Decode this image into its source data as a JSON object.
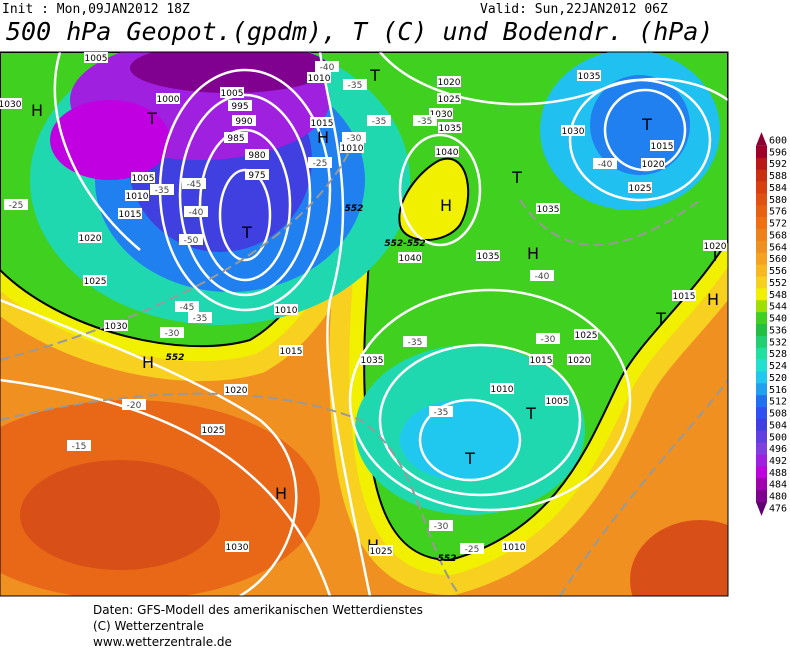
{
  "header": {
    "init": "Init : Mon,09JAN2012 18Z",
    "valid": "Valid: Sun,22JAN2012 06Z",
    "title": "500 hPa Geopot.(gpdm), T (C) und Bodendr. (hPa)"
  },
  "map": {
    "centers": [
      "H",
      "T",
      "H",
      "T",
      "H",
      "T",
      "H",
      "T",
      "H",
      "T",
      "H",
      "T",
      "T",
      "T",
      "H",
      "H",
      "T"
    ],
    "isobar_labels": [
      "1000",
      "1005",
      "995",
      "990",
      "985",
      "980",
      "975",
      "1010",
      "1015",
      "1010",
      "1020",
      "1025",
      "1030",
      "1035",
      "1040",
      "1035",
      "1030",
      "1015",
      "1020",
      "1025",
      "1035",
      "1040",
      "1035",
      "1020",
      "1015",
      "1030",
      "1025",
      "1020",
      "1015",
      "1010",
      "1005",
      "1010",
      "1015",
      "1020",
      "1025",
      "1030",
      "1035",
      "1025",
      "1020",
      "1015",
      "1010",
      "1005",
      "1010",
      "1025",
      "1030",
      "1005"
    ],
    "temperature_labels": [
      "-40",
      "-35",
      "-30",
      "-25",
      "-45",
      "-40",
      "-35",
      "-50",
      "-45",
      "-35",
      "-30",
      "-20",
      "-15",
      "-35",
      "-30",
      "-35",
      "-40",
      "-40",
      "-30",
      "-25",
      "-25",
      "-35",
      "-35"
    ],
    "height_labels": [
      "552",
      "552",
      "552",
      "552-552"
    ]
  },
  "colorbar": {
    "ticks": [
      "600",
      "596",
      "592",
      "588",
      "584",
      "580",
      "576",
      "572",
      "568",
      "564",
      "560",
      "556",
      "552",
      "548",
      "544",
      "540",
      "536",
      "532",
      "528",
      "524",
      "520",
      "516",
      "512",
      "508",
      "504",
      "500",
      "496",
      "492",
      "488",
      "484",
      "480",
      "476"
    ],
    "colors": [
      "#8b0030",
      "#a00028",
      "#b81818",
      "#c83010",
      "#d84010",
      "#e05010",
      "#e86010",
      "#f07010",
      "#f08018",
      "#f09020",
      "#f8a020",
      "#f8b820",
      "#f8d020",
      "#f0f000",
      "#a0e000",
      "#40d020",
      "#20c040",
      "#20d070",
      "#20e0a0",
      "#20e0d0",
      "#20c8f0",
      "#20a0f0",
      "#2070f0",
      "#3050f0",
      "#4040e0",
      "#6040e0",
      "#8040e0",
      "#a020e0",
      "#c000e0",
      "#a000b0",
      "#800090",
      "#600070"
    ]
  },
  "footer": {
    "lines": [
      "Daten: GFS-Modell des amerikanischen Wetterdienstes",
      "(C) Wetterzentrale",
      "www.wetterzentrale.de"
    ]
  }
}
